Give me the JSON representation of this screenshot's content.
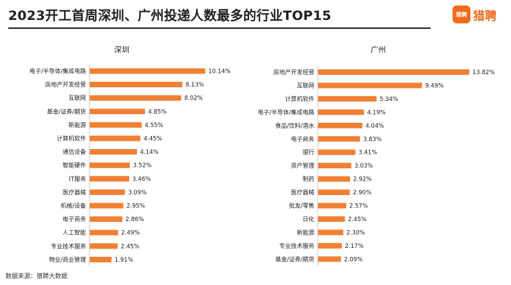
{
  "header": {
    "title": "2023开工首周深圳、广州投递人数最多的行业TOP15",
    "logo_badge": "猎聘",
    "logo_text": "猎聘"
  },
  "footer": {
    "source": "数据来源：猎聘大数据"
  },
  "colors": {
    "bar": "#f08034",
    "title": "#1f1f1f",
    "brand": "#f26a1b"
  },
  "chart_data": [
    {
      "type": "bar",
      "orientation": "horizontal",
      "title": "深圳",
      "categories": [
        "电子/半导体/集成电路",
        "房地产开发经营",
        "互联网",
        "基金/证券/期货",
        "新能源",
        "计算机软件",
        "通信设备",
        "智能硬件",
        "IT服务",
        "医疗器械",
        "机械/设备",
        "电子商务",
        "人工智能",
        "专业技术服务",
        "物业/商业管理"
      ],
      "values": [
        10.14,
        8.13,
        8.02,
        4.85,
        4.55,
        4.45,
        4.14,
        3.52,
        3.46,
        3.09,
        2.95,
        2.86,
        2.49,
        2.45,
        1.91
      ],
      "value_suffix": "%"
    },
    {
      "type": "bar",
      "orientation": "horizontal",
      "title": "广州",
      "categories": [
        "房地产开发经营",
        "互联网",
        "计算机软件",
        "电子/半导体/集成电路",
        "食品/饮料/酒水",
        "电子商务",
        "银行",
        "资产管理",
        "制药",
        "医疗器械",
        "批发/零售",
        "日化",
        "新能源",
        "专业技术服务",
        "基金/证券/期货"
      ],
      "values": [
        13.82,
        9.49,
        5.34,
        4.19,
        4.04,
        3.83,
        3.41,
        3.03,
        2.92,
        2.9,
        2.57,
        2.45,
        2.3,
        2.17,
        2.09
      ],
      "value_suffix": "%"
    }
  ]
}
